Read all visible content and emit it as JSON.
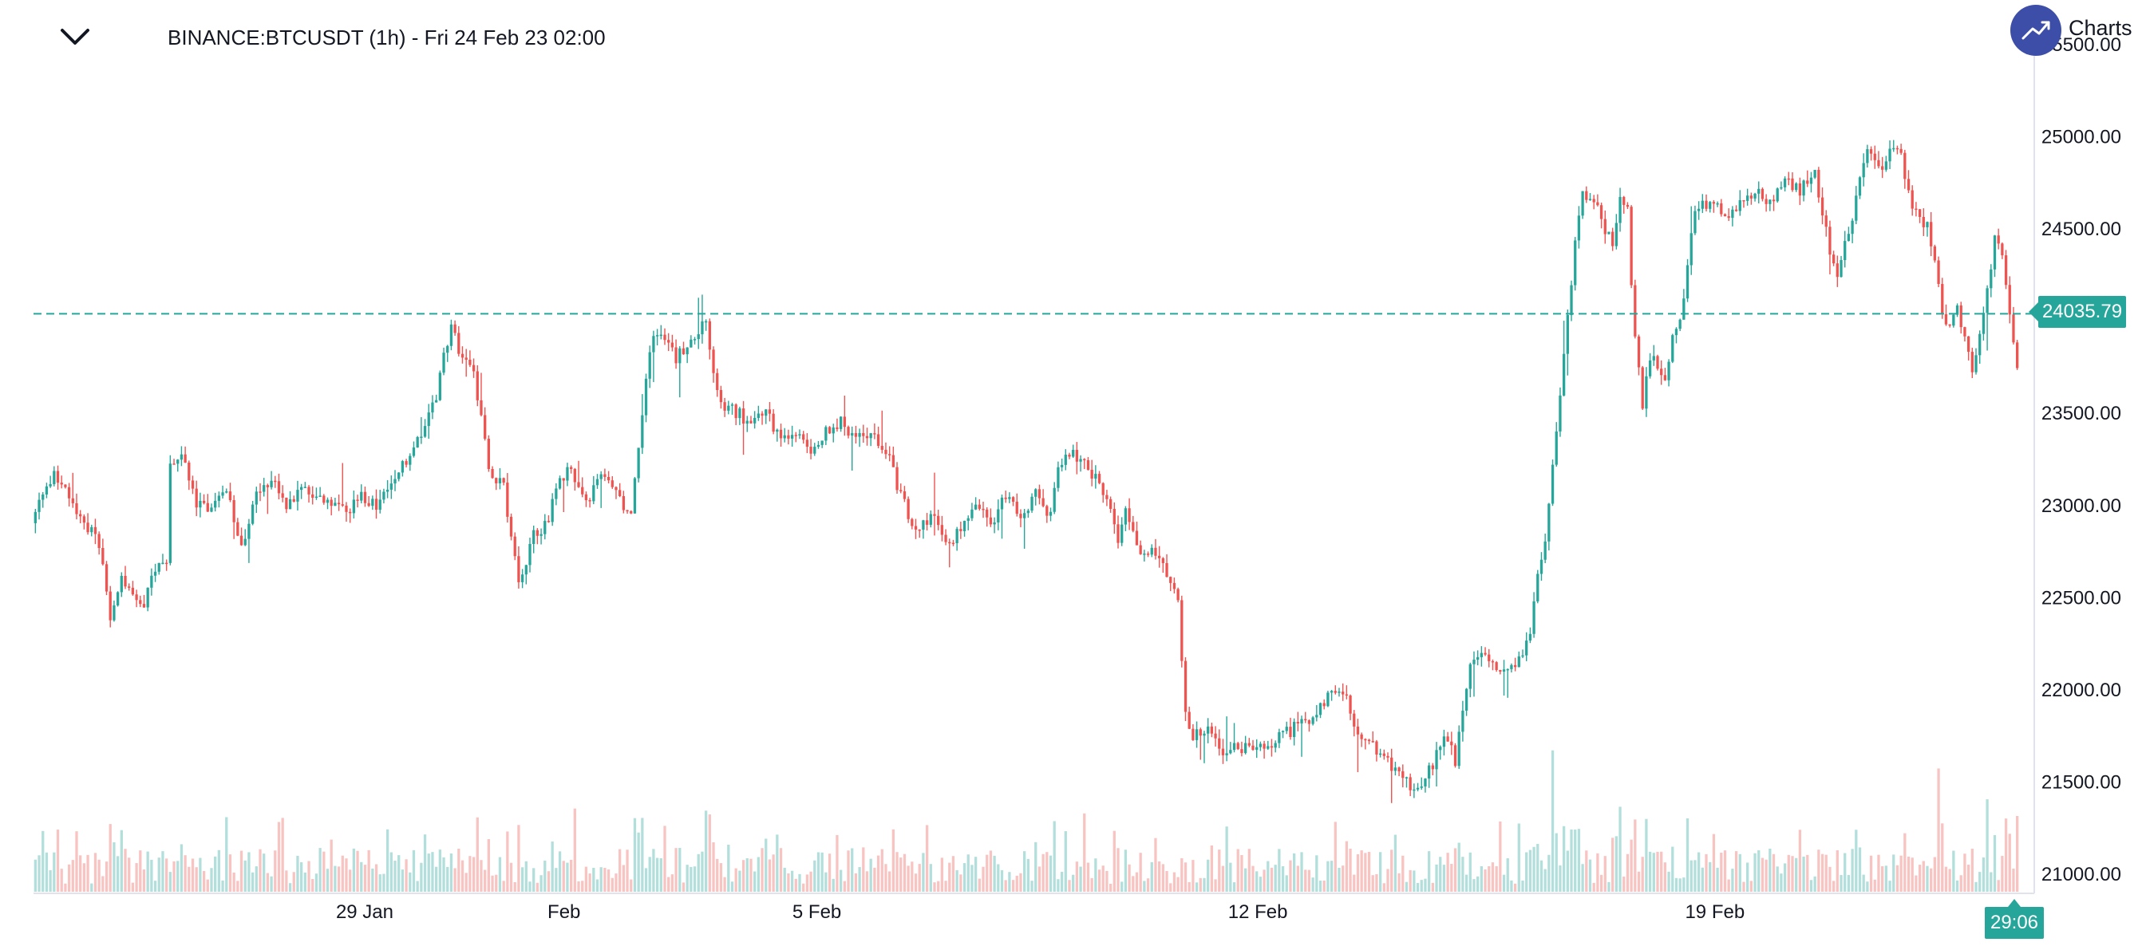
{
  "header": {
    "title": "BINANCE:BTCUSDT (1h) - Fri 24 Feb 23 02:00",
    "logo_text": "Charts"
  },
  "chart_data": {
    "type": "candlestick",
    "symbol": "BINANCE:BTCUSDT",
    "interval": "1h",
    "y_ticks": [
      "25500.00",
      "25000.00",
      "24500.00",
      "24000.00",
      "23500.00",
      "23000.00",
      "22500.00",
      "22000.00",
      "21500.00",
      "21000.00"
    ],
    "y_tick_values": [
      25500,
      25000,
      24500,
      24000,
      23500,
      23000,
      22500,
      22000,
      21500,
      21000
    ],
    "ylim": [
      20970,
      25530
    ],
    "x_ticks": [
      "29 Jan",
      "Feb",
      "5 Feb",
      "12 Feb",
      "19 Feb"
    ],
    "x_tick_positions_hours": [
      88.4,
      141.6,
      209.1,
      326.8,
      448.8
    ],
    "total_hours": 530,
    "last_price": "24035.79",
    "last_price_value": 24035.79,
    "countdown": "29:06",
    "colors": {
      "up": "#26a69a",
      "down": "#ef5350",
      "vol_up": "#b2dfdb",
      "vol_down": "#f8c4c2",
      "last_price_line": "#26a69a"
    },
    "price_anchors": [
      [
        0,
        22900
      ],
      [
        3,
        23050
      ],
      [
        6,
        23150
      ],
      [
        9,
        23100
      ],
      [
        12,
        22950
      ],
      [
        15,
        22880
      ],
      [
        18,
        22800
      ],
      [
        21,
        22400
      ],
      [
        24,
        22600
      ],
      [
        27,
        22500
      ],
      [
        30,
        22450
      ],
      [
        33,
        22650
      ],
      [
        36,
        22700
      ],
      [
        37,
        23200
      ],
      [
        40,
        23300
      ],
      [
        44,
        23000
      ],
      [
        48,
        22950
      ],
      [
        52,
        23100
      ],
      [
        56,
        22750
      ],
      [
        60,
        23050
      ],
      [
        64,
        23150
      ],
      [
        68,
        23000
      ],
      [
        72,
        23100
      ],
      [
        76,
        23050
      ],
      [
        80,
        23000
      ],
      [
        84,
        22950
      ],
      [
        88,
        23050
      ],
      [
        92,
        23000
      ],
      [
        96,
        23100
      ],
      [
        100,
        23250
      ],
      [
        104,
        23400
      ],
      [
        108,
        23600
      ],
      [
        110,
        23800
      ],
      [
        112,
        23950
      ],
      [
        114,
        23850
      ],
      [
        118,
        23700
      ],
      [
        120,
        23500
      ],
      [
        122,
        23200
      ],
      [
        126,
        23100
      ],
      [
        128,
        22800
      ],
      [
        130,
        22600
      ],
      [
        132,
        22700
      ],
      [
        134,
        22850
      ],
      [
        138,
        22900
      ],
      [
        140,
        23100
      ],
      [
        144,
        23200
      ],
      [
        148,
        23000
      ],
      [
        152,
        23150
      ],
      [
        156,
        23050
      ],
      [
        160,
        22950
      ],
      [
        162,
        23300
      ],
      [
        164,
        23700
      ],
      [
        166,
        23950
      ],
      [
        168,
        23900
      ],
      [
        172,
        23800
      ],
      [
        176,
        23900
      ],
      [
        180,
        24000
      ],
      [
        182,
        23700
      ],
      [
        184,
        23550
      ],
      [
        188,
        23500
      ],
      [
        192,
        23450
      ],
      [
        196,
        23500
      ],
      [
        200,
        23350
      ],
      [
        204,
        23400
      ],
      [
        208,
        23300
      ],
      [
        212,
        23400
      ],
      [
        216,
        23450
      ],
      [
        220,
        23350
      ],
      [
        224,
        23400
      ],
      [
        228,
        23300
      ],
      [
        232,
        23050
      ],
      [
        236,
        22850
      ],
      [
        240,
        22950
      ],
      [
        244,
        22800
      ],
      [
        248,
        22850
      ],
      [
        252,
        23000
      ],
      [
        256,
        22900
      ],
      [
        260,
        23050
      ],
      [
        264,
        22950
      ],
      [
        268,
        23050
      ],
      [
        272,
        22950
      ],
      [
        274,
        23200
      ],
      [
        276,
        23300
      ],
      [
        280,
        23250
      ],
      [
        284,
        23150
      ],
      [
        288,
        23000
      ],
      [
        290,
        22800
      ],
      [
        292,
        22950
      ],
      [
        296,
        22700
      ],
      [
        300,
        22750
      ],
      [
        304,
        22600
      ],
      [
        306,
        22450
      ],
      [
        308,
        21850
      ],
      [
        310,
        21750
      ],
      [
        314,
        21800
      ],
      [
        318,
        21650
      ],
      [
        322,
        21700
      ],
      [
        326,
        21650
      ],
      [
        330,
        21700
      ],
      [
        334,
        21750
      ],
      [
        338,
        21800
      ],
      [
        342,
        21850
      ],
      [
        346,
        21950
      ],
      [
        350,
        22000
      ],
      [
        354,
        21750
      ],
      [
        358,
        21700
      ],
      [
        362,
        21600
      ],
      [
        366,
        21500
      ],
      [
        370,
        21450
      ],
      [
        374,
        21600
      ],
      [
        378,
        21750
      ],
      [
        380,
        21600
      ],
      [
        382,
        21900
      ],
      [
        384,
        22100
      ],
      [
        386,
        22200
      ],
      [
        390,
        22150
      ],
      [
        394,
        22100
      ],
      [
        398,
        22200
      ],
      [
        400,
        22300
      ],
      [
        402,
        22600
      ],
      [
        404,
        22800
      ],
      [
        406,
        23200
      ],
      [
        408,
        23600
      ],
      [
        410,
        24000
      ],
      [
        412,
        24400
      ],
      [
        414,
        24700
      ],
      [
        416,
        24650
      ],
      [
        418,
        24600
      ],
      [
        420,
        24500
      ],
      [
        422,
        24400
      ],
      [
        424,
        24700
      ],
      [
        426,
        24600
      ],
      [
        427,
        24200
      ],
      [
        428,
        23900
      ],
      [
        430,
        23550
      ],
      [
        432,
        23800
      ],
      [
        434,
        23750
      ],
      [
        436,
        23700
      ],
      [
        438,
        23900
      ],
      [
        440,
        24000
      ],
      [
        442,
        24300
      ],
      [
        444,
        24600
      ],
      [
        448,
        24650
      ],
      [
        452,
        24550
      ],
      [
        456,
        24650
      ],
      [
        460,
        24700
      ],
      [
        464,
        24650
      ],
      [
        468,
        24750
      ],
      [
        472,
        24700
      ],
      [
        476,
        24800
      ],
      [
        478,
        24600
      ],
      [
        480,
        24350
      ],
      [
        482,
        24250
      ],
      [
        484,
        24450
      ],
      [
        486,
        24550
      ],
      [
        488,
        24800
      ],
      [
        490,
        24900
      ],
      [
        494,
        24850
      ],
      [
        498,
        24950
      ],
      [
        500,
        24800
      ],
      [
        502,
        24600
      ],
      [
        506,
        24500
      ],
      [
        508,
        24300
      ],
      [
        510,
        24050
      ],
      [
        512,
        23950
      ],
      [
        514,
        24050
      ],
      [
        516,
        23900
      ],
      [
        518,
        23700
      ],
      [
        520,
        23950
      ],
      [
        522,
        24150
      ],
      [
        524,
        24450
      ],
      [
        526,
        24350
      ],
      [
        528,
        24050
      ],
      [
        530,
        23750
      ],
      [
        532,
        23800
      ],
      [
        536,
        23900
      ],
      [
        540,
        24050
      ]
    ]
  }
}
